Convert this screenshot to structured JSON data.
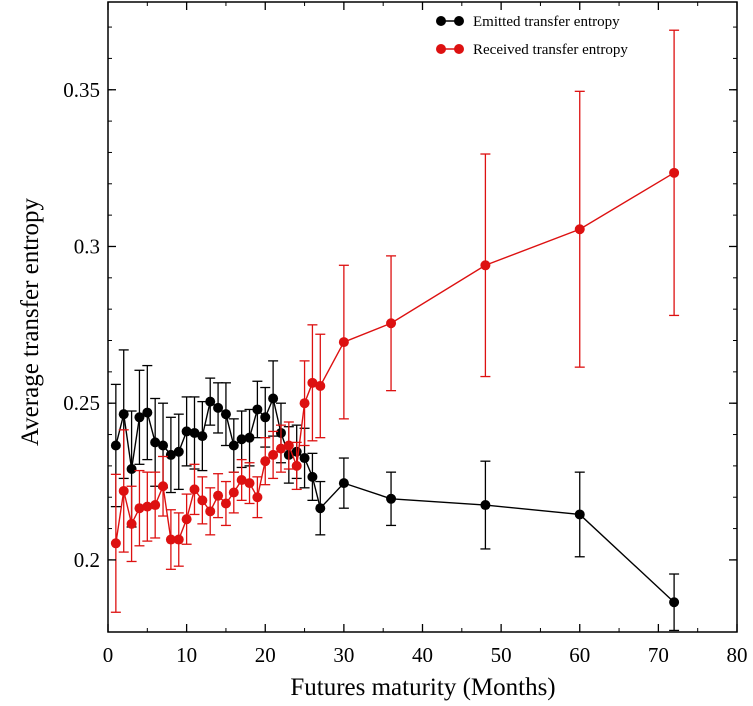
{
  "chart_data": {
    "type": "line",
    "title": "",
    "xlabel": "Futures maturity (Months)",
    "ylabel": "Average transfer entropy",
    "xlim": [
      0,
      80
    ],
    "ylim": [
      0.177,
      0.378
    ],
    "x_ticks": [
      0,
      10,
      20,
      30,
      40,
      50,
      60,
      70,
      80
    ],
    "y_ticks": [
      0.2,
      0.25,
      0.3,
      0.35
    ],
    "x_tick_labels": [
      "0",
      "10",
      "20",
      "30",
      "40",
      "50",
      "60",
      "70",
      "80"
    ],
    "y_tick_labels": [
      "0.2",
      "0.25",
      "0.3",
      "0.35"
    ],
    "grid": false,
    "legend_position": "top-right",
    "error_bars": true,
    "series": [
      {
        "name": "Emitted transfer entropy",
        "color": "#000000",
        "x": [
          1,
          2,
          3,
          4,
          5,
          6,
          7,
          8,
          9,
          10,
          11,
          12,
          13,
          14,
          15,
          16,
          17,
          18,
          19,
          20,
          21,
          22,
          23,
          24,
          25,
          26,
          27,
          30,
          36,
          48,
          60,
          72
        ],
        "y": [
          0.2365,
          0.2465,
          0.229,
          0.2455,
          0.247,
          0.2375,
          0.2365,
          0.2335,
          0.2345,
          0.241,
          0.2405,
          0.2395,
          0.2505,
          0.2485,
          0.2465,
          0.2365,
          0.2385,
          0.239,
          0.248,
          0.2455,
          0.2515,
          0.2405,
          0.2335,
          0.2345,
          0.2325,
          0.2265,
          0.2165,
          0.2245,
          0.2195,
          0.2175,
          0.2145,
          0.1865
        ],
        "err": [
          0.0195,
          0.0205,
          0.0185,
          0.015,
          0.015,
          0.014,
          0.0135,
          0.012,
          0.012,
          0.011,
          0.0115,
          0.011,
          0.0075,
          0.008,
          0.01,
          0.0085,
          0.009,
          0.009,
          0.009,
          0.0095,
          0.012,
          0.0095,
          0.009,
          0.0085,
          0.0095,
          0.0075,
          0.0085,
          0.008,
          0.0085,
          0.014,
          0.0135,
          0.009
        ]
      },
      {
        "name": "Received transfer entropy",
        "color": "#dd1111",
        "x": [
          1,
          2,
          3,
          4,
          5,
          6,
          7,
          8,
          9,
          10,
          11,
          12,
          13,
          14,
          15,
          16,
          17,
          18,
          19,
          20,
          21,
          22,
          23,
          24,
          25,
          26,
          27,
          30,
          36,
          48,
          60,
          72
        ],
        "y": [
          0.2053,
          0.222,
          0.2115,
          0.2165,
          0.217,
          0.2175,
          0.2235,
          0.2065,
          0.2065,
          0.213,
          0.2225,
          0.219,
          0.2155,
          0.2205,
          0.218,
          0.2215,
          0.2255,
          0.2245,
          0.22,
          0.2315,
          0.2335,
          0.2355,
          0.2365,
          0.23,
          0.25,
          0.2565,
          0.2555,
          0.2695,
          0.2755,
          0.294,
          0.3055,
          0.3235
        ],
        "err": [
          0.022,
          0.0195,
          0.012,
          0.012,
          0.011,
          0.0105,
          0.0095,
          0.0095,
          0.0085,
          0.008,
          0.008,
          0.0075,
          0.0075,
          0.007,
          0.007,
          0.0065,
          0.0065,
          0.0065,
          0.0065,
          0.0075,
          0.0075,
          0.0075,
          0.0075,
          0.0075,
          0.0135,
          0.0185,
          0.0165,
          0.0245,
          0.0215,
          0.0355,
          0.044,
          0.0455
        ]
      }
    ]
  }
}
